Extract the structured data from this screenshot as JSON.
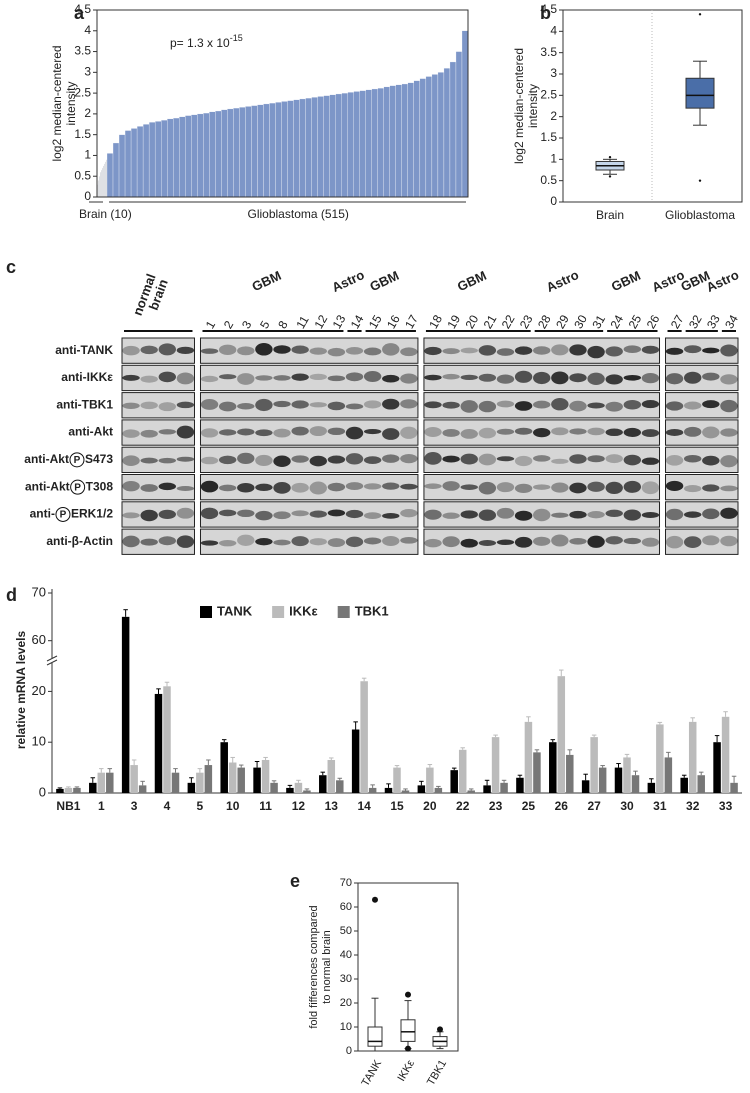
{
  "chart_data": [
    {
      "type": "bar",
      "panel_label": "a",
      "y_label": [
        "log2 median-centered",
        "intensity"
      ],
      "annotation": {
        "text": "p= 1.3 x 10",
        "exponent": "-15"
      },
      "ylim": [
        0,
        4.5
      ],
      "yticks": [
        0,
        0.5,
        1,
        1.5,
        2,
        2.5,
        3,
        3.5,
        4,
        4.5
      ],
      "series": [
        {
          "name": "Brain (10)",
          "color": "#c9ccd3",
          "values": [
            0.3,
            0.4,
            0.5,
            0.6,
            0.65,
            0.7,
            0.75,
            0.8,
            0.85,
            0.9
          ]
        },
        {
          "name": "Glioblastoma (515)",
          "color": "#7d96c8",
          "values": [
            1.05,
            1.3,
            1.5,
            1.6,
            1.65,
            1.7,
            1.75,
            1.8,
            1.82,
            1.85,
            1.88,
            1.9,
            1.93,
            1.96,
            1.98,
            2.0,
            2.02,
            2.05,
            2.07,
            2.1,
            2.12,
            2.14,
            2.16,
            2.18,
            2.2,
            2.22,
            2.24,
            2.26,
            2.28,
            2.3,
            2.32,
            2.34,
            2.36,
            2.38,
            2.4,
            2.42,
            2.44,
            2.46,
            2.48,
            2.5,
            2.52,
            2.54,
            2.56,
            2.58,
            2.6,
            2.62,
            2.65,
            2.68,
            2.7,
            2.72,
            2.75,
            2.8,
            2.85,
            2.9,
            2.95,
            3.0,
            3.1,
            3.25,
            3.5,
            4.0
          ]
        }
      ]
    },
    {
      "type": "box",
      "panel_label": "b",
      "y_label": [
        "log2 median-centered",
        "intensity"
      ],
      "ylim": [
        0,
        4.5
      ],
      "yticks": [
        0,
        0.5,
        1,
        1.5,
        2,
        2.5,
        3,
        3.5,
        4,
        4.5
      ],
      "categories": [
        "Brain",
        "Glioblastoma"
      ],
      "colors": [
        "#c5d6ea",
        "#4a6ea8"
      ],
      "boxes": [
        {
          "whislo": 0.65,
          "q1": 0.75,
          "med": 0.85,
          "q3": 0.95,
          "whishi": 1.0,
          "fliers": [
            1.05,
            0.6
          ]
        },
        {
          "whislo": 1.8,
          "q1": 2.2,
          "med": 2.5,
          "q3": 2.9,
          "whishi": 3.3,
          "fliers": [
            4.4,
            0.5
          ]
        }
      ]
    },
    {
      "type": "grouped_bar",
      "panel_label": "d",
      "y_label": "relative mRNA levels",
      "ylim": [
        0,
        70
      ],
      "yticks": [
        0,
        10,
        20,
        60,
        70
      ],
      "axis_break": [
        25,
        57
      ],
      "legend": "top",
      "categories": [
        "NB1",
        "1",
        "3",
        "4",
        "5",
        "10",
        "11",
        "12",
        "13",
        "14",
        "15",
        "20",
        "22",
        "23",
        "25",
        "26",
        "27",
        "30",
        "31",
        "32",
        "33"
      ],
      "series": [
        {
          "name": "TANK",
          "color": "#000000",
          "values": [
            0.8,
            2,
            65,
            19.5,
            2,
            10,
            5,
            1,
            3.5,
            12.5,
            1,
            1.5,
            4.5,
            1.5,
            3,
            10,
            2.5,
            5,
            2,
            3,
            10
          ],
          "errors": [
            0.2,
            1,
            1.5,
            1,
            1,
            0.5,
            1.2,
            0.5,
            0.6,
            1.5,
            0.8,
            0.8,
            0.4,
            1,
            0.5,
            0.5,
            1.2,
            0.8,
            0.8,
            0.5,
            1.3
          ]
        },
        {
          "name": "IKKε",
          "color": "#bbbbbb",
          "values": [
            1,
            4,
            5.5,
            21,
            4,
            6,
            6.5,
            2,
            6.5,
            22,
            5,
            5,
            8.5,
            11,
            14,
            23,
            11,
            7,
            13.5,
            14,
            15
          ],
          "errors": [
            0.2,
            0.8,
            1,
            0.8,
            0.8,
            1,
            0.5,
            0.5,
            0.4,
            0.6,
            0.4,
            0.6,
            0.4,
            0.4,
            1,
            1.2,
            0.4,
            0.6,
            0.4,
            0.8,
            1
          ]
        },
        {
          "name": "TBK1",
          "color": "#777777",
          "values": [
            1,
            4,
            1.5,
            4,
            5.5,
            5,
            2,
            0.5,
            2.5,
            1,
            0.5,
            1,
            0.5,
            2,
            8,
            7.5,
            5,
            3.5,
            7,
            3.5,
            2
          ],
          "errors": [
            0.2,
            0.8,
            0.8,
            0.8,
            1,
            0.5,
            0.4,
            0.3,
            0.4,
            0.6,
            0.3,
            0.3,
            0.3,
            0.5,
            0.5,
            1,
            0.4,
            0.8,
            1,
            0.6,
            1.3
          ]
        }
      ]
    },
    {
      "type": "box",
      "panel_label": "e",
      "y_label": [
        "fold fifferences compared",
        "to normal brain"
      ],
      "ylim": [
        0,
        70
      ],
      "yticks": [
        0,
        10,
        20,
        30,
        40,
        50,
        60,
        70
      ],
      "categories": [
        "TANK",
        "IKKε",
        "TBK1"
      ],
      "colors": [
        "#ffffff",
        "#ffffff",
        "#ffffff"
      ],
      "boxes": [
        {
          "whislo": 0,
          "q1": 2,
          "med": 4,
          "q3": 10,
          "whishi": 22,
          "fliers": [
            63
          ]
        },
        {
          "whislo": 1,
          "q1": 4,
          "med": 8,
          "q3": 13,
          "whishi": 21,
          "fliers": [
            23.5,
            1
          ]
        },
        {
          "whislo": 1,
          "q1": 2,
          "med": 4,
          "q3": 6,
          "whishi": 8,
          "fliers": [
            9
          ]
        }
      ]
    }
  ],
  "blot": {
    "panel_label": "c",
    "phospho_symbol": "P",
    "groups": [
      {
        "name": [
          "normal",
          "brain"
        ],
        "lanes": [
          null,
          null,
          null,
          null
        ]
      },
      {
        "name": [
          "GBM"
        ],
        "lanes": [
          "1",
          "2",
          "3",
          "5",
          "8",
          "11",
          "12",
          "13"
        ]
      },
      {
        "name": [
          "Astro"
        ],
        "lanes": [
          "14"
        ]
      },
      {
        "name": [
          "GBM"
        ],
        "lanes": [
          "15",
          "16",
          "17"
        ]
      },
      {
        "name": [
          "GBM"
        ],
        "lanes": [
          "18",
          "19",
          "20",
          "21",
          "22",
          "23"
        ]
      },
      {
        "name": [
          "Astro"
        ],
        "lanes": [
          "28",
          "29",
          "30",
          "31"
        ]
      },
      {
        "name": [
          "GBM"
        ],
        "lanes": [
          "24",
          "25",
          "26"
        ]
      },
      {
        "name": [
          "Astro"
        ],
        "lanes": [
          "27"
        ]
      },
      {
        "name": [
          "GBM"
        ],
        "lanes": [
          "32",
          "33"
        ]
      },
      {
        "name": [
          "Astro"
        ],
        "lanes": [
          "34"
        ]
      }
    ],
    "rows": [
      {
        "label": "anti-TANK"
      },
      {
        "label": "anti-IKKε"
      },
      {
        "label": "anti-TBK1"
      },
      {
        "label": "anti-Akt"
      },
      {
        "label": "anti-Akt",
        "suffix": "S473"
      },
      {
        "label": "anti-Akt",
        "suffix": "T308"
      },
      {
        "label": "anti-",
        "suffix": "ERK1/2"
      },
      {
        "label": "anti-β-Actin"
      }
    ]
  }
}
